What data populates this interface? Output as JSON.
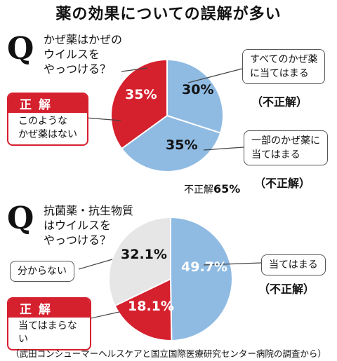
{
  "title": "薬の効果についての誤解が多い",
  "source": "（武田コンシューマーヘルスケアと国立国際医療研究センター病院の調査から）",
  "answer_header": "正解",
  "incorrect_label": "（不正解）",
  "colors": {
    "red": "#d5202e",
    "blue": "#8fbbe3",
    "gray": "#e6e6e6"
  },
  "chart_data": [
    {
      "type": "pie",
      "title": "かぜ薬はかぜのウイルスをやっつける？",
      "question_lines": [
        "かぜ薬はかぜの",
        "ウイルスを",
        "やっつける？"
      ],
      "categories": [
        "すべてのかぜ薬に当てはまる",
        "一部のかぜ薬に当てはまる",
        "このようなかぜ薬はない"
      ],
      "values": [
        30,
        35,
        35
      ],
      "value_labels": [
        "30%",
        "35%",
        "35%"
      ],
      "correct_answer": "このようなかぜ薬はない",
      "callouts": [
        [
          "すべてのかぜ薬",
          "に当てはまる"
        ],
        [
          "一部のかぜ薬に",
          "当てはまる"
        ]
      ],
      "answer_lines": [
        "このような",
        "かぜ薬はない"
      ],
      "incorrect_total": {
        "label": "不正解",
        "value": "65%"
      }
    },
    {
      "type": "pie",
      "title": "抗菌薬・抗生物質はウイルスをやっつける？",
      "question_lines": [
        "抗菌薬・抗生物質",
        "はウイルスを",
        "やっつける？"
      ],
      "categories": [
        "当てはまる",
        "当てはまらない",
        "分からない"
      ],
      "values": [
        49.7,
        18.1,
        32.1
      ],
      "value_labels": [
        "49.7%",
        "18.1%",
        "32.1%"
      ],
      "correct_answer": "当てはまらない",
      "callouts": [
        [
          "当てはまる"
        ],
        [
          "分からない"
        ]
      ],
      "answer_lines": [
        "当てはまらない"
      ]
    }
  ]
}
